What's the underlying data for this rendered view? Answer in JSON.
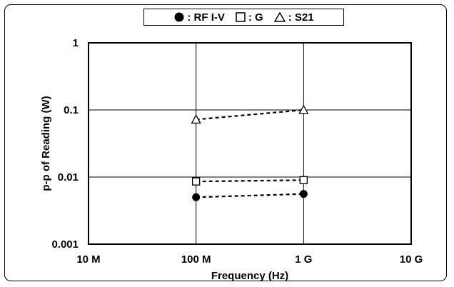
{
  "chart_data": {
    "type": "scatter",
    "title": "",
    "xlabel": "Frequency (Hz)",
    "ylabel": "p-p of Reading (W)",
    "x_scale": "log",
    "y_scale": "log",
    "xlim": [
      10000000,
      10000000000
    ],
    "ylim": [
      0.001,
      1
    ],
    "x_ticks": [
      {
        "value": 10000000,
        "label": "10 M"
      },
      {
        "value": 100000000,
        "label": "100 M"
      },
      {
        "value": 1000000000,
        "label": "1 G"
      },
      {
        "value": 10000000000,
        "label": "10 G"
      }
    ],
    "y_ticks": [
      {
        "value": 1,
        "label": "1"
      },
      {
        "value": 0.1,
        "label": "0.1"
      },
      {
        "value": 0.01,
        "label": "0.01"
      },
      {
        "value": 0.001,
        "label": "0.001"
      }
    ],
    "grid": true,
    "legend_position": "top-center",
    "series": [
      {
        "name": "RF I-V",
        "marker": "filled-circle",
        "line": "dashed",
        "x": [
          100000000,
          1000000000
        ],
        "y": [
          0.005,
          0.0056
        ]
      },
      {
        "name": "G",
        "marker": "open-square",
        "line": "dashed",
        "x": [
          100000000,
          1000000000
        ],
        "y": [
          0.0086,
          0.009
        ]
      },
      {
        "name": "S21",
        "marker": "open-triangle",
        "line": "dashed",
        "x": [
          100000000,
          1000000000
        ],
        "y": [
          0.072,
          0.1
        ]
      }
    ]
  },
  "legend": [
    {
      "label": ": RF I-V"
    },
    {
      "label": ": G"
    },
    {
      "label": ": S21"
    }
  ]
}
